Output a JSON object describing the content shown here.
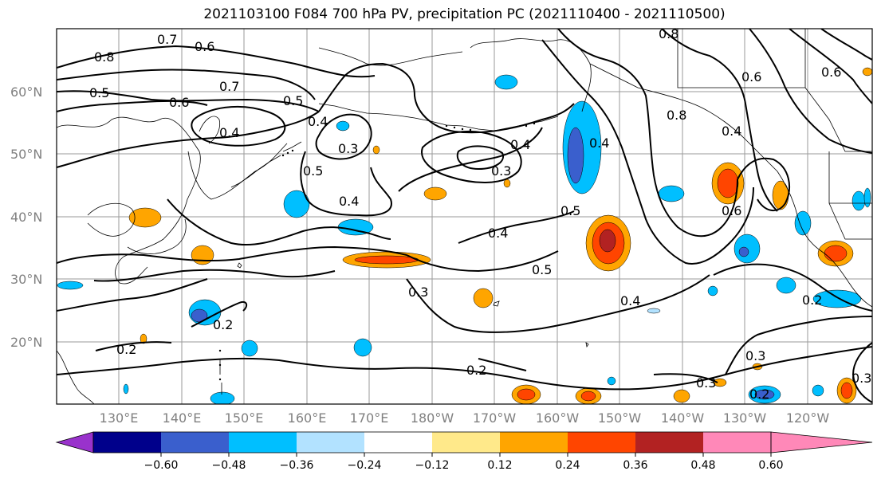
{
  "title": "2021103100 F084 700 hPa PV, precipitation PC (2021110400 - 2021110500)",
  "lat_ticks": [
    "60°N",
    "50°N",
    "40°N",
    "30°N",
    "20°N"
  ],
  "lon_ticks": [
    "130°E",
    "140°E",
    "150°E",
    "160°E",
    "170°E",
    "180°W",
    "170°W",
    "160°W",
    "150°W",
    "140°W",
    "130°W",
    "120°W"
  ],
  "colorbar": {
    "tick_labels": [
      "−0.60",
      "−0.48",
      "−0.36",
      "−0.24",
      "−0.12",
      "0.12",
      "0.24",
      "0.36",
      "0.48",
      "0.60"
    ],
    "colors": [
      "#9932CC",
      "#00008B",
      "#3A5FCD",
      "#00BFFF",
      "#B2E2FF",
      "#FFFFFF",
      "#FFE98A",
      "#FFA500",
      "#FF4500",
      "#B22222",
      "#FF88B8"
    ]
  },
  "contour_labels": [
    "0.8",
    "0.7",
    "0.6",
    "0.5",
    "0.7",
    "0.6",
    "0.4",
    "0.5",
    "0.4",
    "0.3",
    "0.4",
    "0.3",
    "0.4",
    "0.5",
    "0.4",
    "0.4",
    "0.5",
    "0.3",
    "0.2",
    "0.2",
    "0.2",
    "0.4",
    "0.5",
    "0.8",
    "0.4",
    "0.6",
    "0.2",
    "0.3",
    "0.3",
    "0.2",
    "0.3",
    "0.8",
    "0.6",
    "0.6"
  ]
}
